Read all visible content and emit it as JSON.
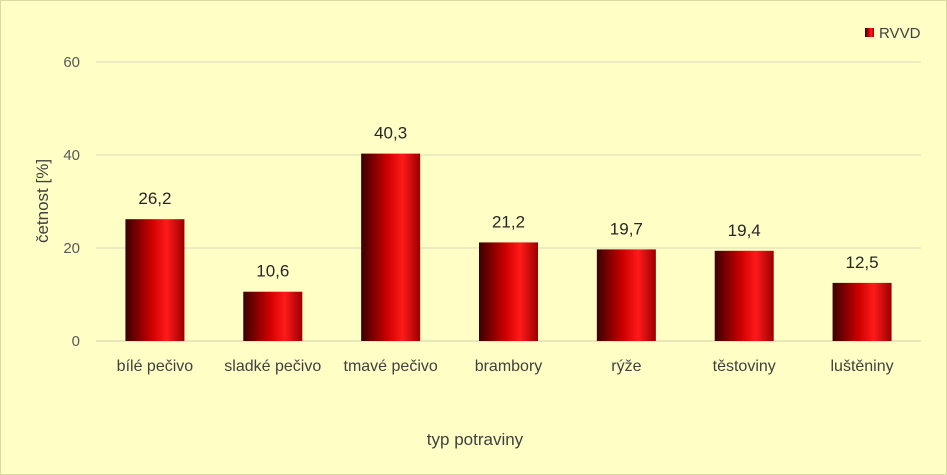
{
  "chart_data": {
    "type": "bar",
    "title": "",
    "xlabel": "typ potraviny",
    "ylabel": "četnost [%]",
    "ylim": [
      0,
      60
    ],
    "yticks": [
      0,
      20,
      40,
      60
    ],
    "grid": true,
    "legend_position": "top-right",
    "categories": [
      "bílé pečivo",
      "sladké pečivo",
      "tmavé pečivo",
      "brambory",
      "rýže",
      "těstoviny",
      "luštěniny"
    ],
    "series": [
      {
        "name": "RVVD",
        "values": [
          26.2,
          10.6,
          40.3,
          21.2,
          19.7,
          19.4,
          12.5
        ],
        "labels": [
          "26,2",
          "10,6",
          "40,3",
          "21,2",
          "19,7",
          "19,4",
          "12,5"
        ],
        "color": "#ff0000"
      }
    ]
  }
}
